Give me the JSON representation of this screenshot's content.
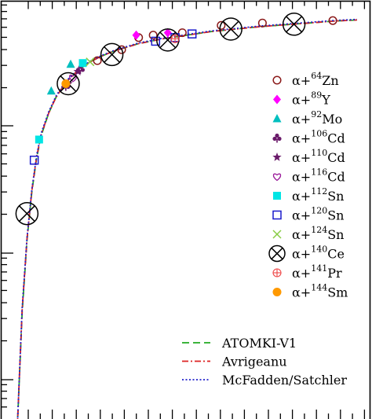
{
  "chart_data": {
    "type": "scatter",
    "x_scale": "linear",
    "y_scale": "log",
    "xlim": [
      0,
      14
    ],
    "ylim": [
      -3.4,
      0.0
    ],
    "grid": false,
    "legend_placement": "right",
    "series": [
      {
        "name": "α+64Zn",
        "prefix": "α+",
        "mass": "64",
        "element": "Zn",
        "marker": "circle-open",
        "color": "#8b1a1a",
        "x": [
          3.3,
          4.3,
          5.0,
          5.6,
          6.8,
          8.4,
          10.1,
          13.0
        ],
        "y": [
          -0.37,
          -0.28,
          -0.18,
          -0.16,
          -0.14,
          -0.08,
          -0.06,
          -0.04
        ]
      },
      {
        "name": "α+89Y",
        "prefix": "α+",
        "mass": "89",
        "element": "Y",
        "marker": "diamond",
        "color": "#ff00ff",
        "x": [
          4.9,
          6.2
        ],
        "y": [
          -0.16,
          -0.14
        ]
      },
      {
        "name": "α+92Mo",
        "prefix": "α+",
        "mass": "92",
        "element": "Mo",
        "marker": "triangle",
        "color": "#00bfbf",
        "x": [
          1.4,
          2.2
        ],
        "y": [
          -0.62,
          -0.4
        ]
      },
      {
        "name": "α+106Cd",
        "prefix": "α+",
        "mass": "106",
        "element": "Cd",
        "marker": "club",
        "color": "#6a1a6a",
        "x": [
          2.0,
          2.6
        ],
        "y": [
          -0.58,
          -0.44
        ]
      },
      {
        "name": "α+110Cd",
        "prefix": "α+",
        "mass": "110",
        "element": "Cd",
        "marker": "star",
        "color": "#6a1a6a",
        "x": [
          2.1,
          2.5
        ],
        "y": [
          -0.56,
          -0.46
        ]
      },
      {
        "name": "α+116Cd",
        "prefix": "α+",
        "mass": "116",
        "element": "Cd",
        "marker": "heart",
        "color": "#9a1a9a",
        "x": [
          2.3
        ],
        "y": [
          -0.51
        ]
      },
      {
        "name": "α+112Sn",
        "prefix": "α+",
        "mass": "112",
        "element": "Sn",
        "marker": "square",
        "color": "#00e5e5",
        "x": [
          0.9,
          2.7
        ],
        "y": [
          -1.02,
          -0.39
        ]
      },
      {
        "name": "α+120Sn",
        "prefix": "α+",
        "mass": "120",
        "element": "Sn",
        "marker": "square-open",
        "color": "#1a1acc",
        "x": [
          0.7,
          5.7,
          6.5,
          7.2
        ],
        "y": [
          -1.19,
          -0.21,
          -0.18,
          -0.15
        ]
      },
      {
        "name": "α+124Sn",
        "prefix": "α+",
        "mass": "124",
        "element": "Sn",
        "marker": "x",
        "color": "#88cc44",
        "x": [
          3.0
        ],
        "y": [
          -0.38
        ]
      },
      {
        "name": "α+140Ce",
        "prefix": "α+",
        "mass": "140",
        "element": "Ce",
        "marker": "circle-cross",
        "color": "#000000",
        "x": [
          0.4,
          2.1,
          3.9,
          6.2,
          8.8,
          11.4
        ],
        "y": [
          -1.63,
          -0.56,
          -0.32,
          -0.2,
          -0.11,
          -0.07
        ]
      },
      {
        "name": "α+141Pr",
        "prefix": "α+",
        "mass": "141",
        "element": "Pr",
        "marker": "circle-plus",
        "color": "#ee4444",
        "x": [
          6.5
        ],
        "y": [
          -0.19
        ]
      },
      {
        "name": "α+144Sm",
        "prefix": "α+",
        "mass": "144",
        "element": "Sm",
        "marker": "circle-filled",
        "color": "#ff9900",
        "x": [
          2.0
        ],
        "y": [
          -0.56
        ]
      }
    ],
    "curves": [
      {
        "name": "ATOMKI-V1",
        "style": "dashed",
        "color": "#22aa22",
        "x": [
          0.0,
          0.2,
          0.4,
          0.6,
          0.8,
          1.0,
          1.3,
          1.6,
          2.0,
          2.5,
          3.0,
          3.5,
          4.0,
          5.0,
          6.0,
          7.0,
          8.0,
          9.0,
          10.0,
          11.0,
          12.0,
          13.0,
          14.0
        ],
        "y": [
          -3.4,
          -2.45,
          -1.85,
          -1.45,
          -1.17,
          -0.98,
          -0.8,
          -0.67,
          -0.55,
          -0.45,
          -0.38,
          -0.33,
          -0.29,
          -0.23,
          -0.19,
          -0.16,
          -0.13,
          -0.11,
          -0.09,
          -0.075,
          -0.06,
          -0.045,
          -0.035
        ]
      },
      {
        "name": "Avrigeanu",
        "style": "dashdot",
        "color": "#dd2222",
        "x": [
          0.0,
          0.2,
          0.4,
          0.6,
          0.8,
          1.0,
          1.3,
          1.6,
          2.0,
          2.5,
          3.0,
          3.5,
          4.0,
          5.0,
          6.0,
          7.0,
          8.0,
          9.0,
          10.0,
          11.0,
          12.0,
          13.0,
          14.0
        ],
        "y": [
          -3.4,
          -2.43,
          -1.84,
          -1.44,
          -1.16,
          -0.97,
          -0.8,
          -0.67,
          -0.55,
          -0.45,
          -0.38,
          -0.33,
          -0.29,
          -0.23,
          -0.19,
          -0.16,
          -0.13,
          -0.11,
          -0.09,
          -0.075,
          -0.06,
          -0.045,
          -0.035
        ]
      },
      {
        "name": "McFadden/Satchler",
        "style": "dotted",
        "color": "#2222cc",
        "x": [
          0.0,
          0.2,
          0.4,
          0.6,
          0.8,
          1.0,
          1.3,
          1.6,
          2.0,
          2.5,
          3.0,
          3.5,
          4.0,
          5.0,
          6.0,
          7.0,
          8.0,
          9.0,
          10.0,
          11.0,
          12.0,
          13.0,
          14.0
        ],
        "y": [
          -3.4,
          -2.41,
          -1.83,
          -1.43,
          -1.15,
          -0.96,
          -0.79,
          -0.66,
          -0.54,
          -0.445,
          -0.375,
          -0.325,
          -0.285,
          -0.225,
          -0.185,
          -0.155,
          -0.125,
          -0.105,
          -0.085,
          -0.07,
          -0.055,
          -0.04,
          -0.03
        ]
      }
    ]
  }
}
